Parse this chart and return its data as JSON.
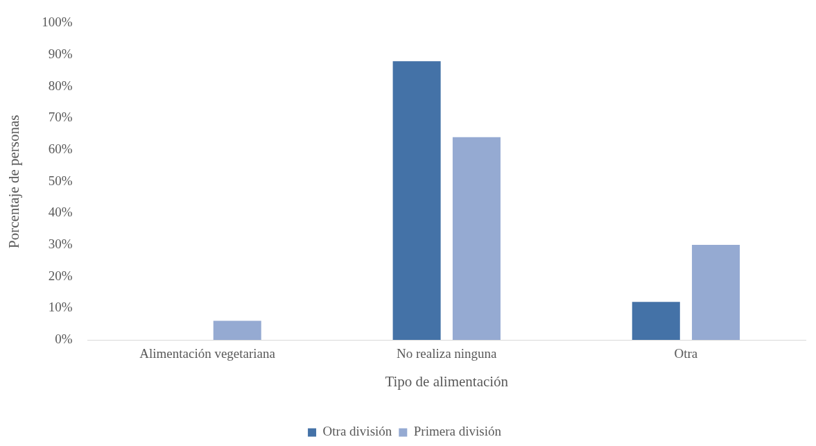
{
  "chart_data": {
    "type": "bar",
    "xlabel": "Tipo de alimentación",
    "ylabel": "Porcentaje de personas",
    "categories": [
      "Alimentación vegetariana",
      "No realiza ninguna",
      "Otra"
    ],
    "series": [
      {
        "name": "Otra división",
        "color": "#4472a7",
        "values": [
          0,
          88,
          12
        ]
      },
      {
        "name": "Primera división",
        "color": "#95aad2",
        "values": [
          6,
          64,
          30
        ]
      }
    ],
    "ylim": [
      0,
      100
    ],
    "yticks": [
      {
        "value": 0,
        "label": "0%"
      },
      {
        "value": 10,
        "label": "10%"
      },
      {
        "value": 20,
        "label": "20%"
      },
      {
        "value": 30,
        "label": "30%"
      },
      {
        "value": 40,
        "label": "40%"
      },
      {
        "value": 50,
        "label": "50%"
      },
      {
        "value": 60,
        "label": "60%"
      },
      {
        "value": 70,
        "label": "70%"
      },
      {
        "value": 80,
        "label": "80%"
      },
      {
        "value": 90,
        "label": "90%"
      },
      {
        "value": 100,
        "label": "100%"
      }
    ],
    "grid": false,
    "legend": "bottom"
  }
}
